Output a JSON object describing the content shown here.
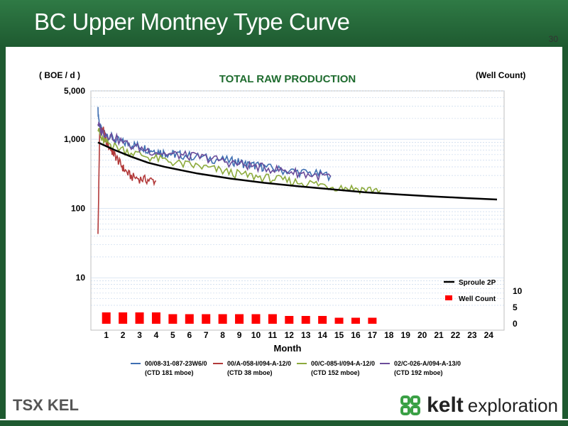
{
  "page": {
    "title": "BC Upper Montney Type Curve",
    "page_number": "30"
  },
  "footer": {
    "tsx_logo": "TSX KEL",
    "brand_name": "kelt",
    "brand_suffix": "exploration"
  },
  "colors": {
    "header_green": "#1e5a30",
    "sprouleline": "#000000",
    "wellbar": "#ff0000",
    "s1": "#3f6fb2",
    "s2": "#b23a3a",
    "s3": "#8caa3c",
    "s4": "#6b4c9a"
  },
  "chart_data": {
    "type": "line",
    "title": "TOTAL RAW PRODUCTION",
    "ylabel": "( BOE / d )",
    "y2label": "(Well Count)",
    "xlabel": "Month",
    "y_scale": "log",
    "ylim": [
      4,
      5000
    ],
    "y_ticks": [
      {
        "v": 5000,
        "label": "5,000"
      },
      {
        "v": 1000,
        "label": "1,000"
      },
      {
        "v": 100,
        "label": "100"
      },
      {
        "v": 10,
        "label": "10"
      }
    ],
    "x_ticks": [
      "1",
      "2",
      "3",
      "4",
      "5",
      "6",
      "7",
      "8",
      "9",
      "10",
      "11",
      "12",
      "13",
      "14",
      "15",
      "16",
      "17",
      "18",
      "19",
      "20",
      "21",
      "22",
      "23",
      "24"
    ],
    "y2_ticks": [
      {
        "v": 10,
        "label": "10"
      },
      {
        "v": 5,
        "label": "5"
      },
      {
        "v": 0,
        "label": "0"
      }
    ],
    "y2lim": [
      0,
      10
    ],
    "well_count": [
      4,
      4,
      4,
      4,
      3,
      3,
      3,
      3,
      3,
      3,
      3,
      2,
      2,
      2,
      1,
      1,
      1,
      0,
      0,
      0,
      0,
      0,
      0,
      0
    ],
    "series": [
      {
        "name": "00/08-31-087-23W6/0",
        "ctd": "(CTD 181 mboe)",
        "color": "#3f6fb2",
        "x": [
          0,
          0.1,
          0.2,
          0.5,
          1,
          1.5,
          2,
          2.5,
          3,
          3.5,
          4,
          4.5,
          5,
          6,
          7,
          8,
          8.5,
          9,
          9.5,
          10,
          11,
          12,
          13,
          14
        ],
        "y": [
          2600,
          1500,
          1400,
          1200,
          1000,
          900,
          850,
          800,
          720,
          680,
          640,
          610,
          600,
          560,
          520,
          490,
          470,
          430,
          420,
          400,
          360,
          340,
          320,
          300
        ]
      },
      {
        "name": "00/A-058-I/094-A-12/0",
        "ctd": "(CTD 38 mboe)",
        "color": "#b23a3a",
        "x": [
          0,
          0.1,
          0.3,
          0.5,
          0.8,
          1,
          1.3,
          1.6,
          2,
          2.5,
          3,
          3.5
        ],
        "y": [
          40,
          1200,
          1400,
          900,
          700,
          600,
          460,
          360,
          290,
          270,
          260,
          250
        ]
      },
      {
        "name": "00/C-085-I/094-A-12/0",
        "ctd": "(CTD 152 mboe)",
        "color": "#8caa3c",
        "x": [
          0,
          0.2,
          0.5,
          1,
          2,
          3,
          4,
          5,
          6,
          7,
          8,
          9,
          10,
          11,
          12,
          13,
          14,
          15,
          16,
          17
        ],
        "y": [
          1500,
          1000,
          900,
          800,
          650,
          560,
          500,
          440,
          410,
          370,
          330,
          300,
          280,
          260,
          240,
          230,
          210,
          200,
          190,
          185
        ]
      },
      {
        "name": "02/C-026-A/094-A-13/0",
        "ctd": "(CTD 192 mboe)",
        "color": "#6b4c9a",
        "x": [
          0,
          0.2,
          0.5,
          1,
          2,
          3,
          4,
          5,
          6,
          7,
          8,
          9,
          10,
          11,
          12,
          13,
          14
        ],
        "y": [
          1700,
          1300,
          1200,
          1050,
          800,
          700,
          620,
          590,
          560,
          520,
          460,
          420,
          390,
          360,
          330,
          300,
          290
        ]
      }
    ],
    "type_curve": {
      "name": "Sproule 2P",
      "x": [
        0,
        1,
        2,
        3,
        4,
        6,
        8,
        10,
        12,
        14,
        16,
        18,
        20,
        22,
        24
      ],
      "y": [
        900,
        700,
        560,
        460,
        400,
        320,
        270,
        235,
        210,
        190,
        172,
        160,
        150,
        142,
        135
      ]
    },
    "legend": {
      "placement": "bottom-right",
      "entries": [
        "Sproule 2P",
        "Well Count"
      ]
    }
  }
}
